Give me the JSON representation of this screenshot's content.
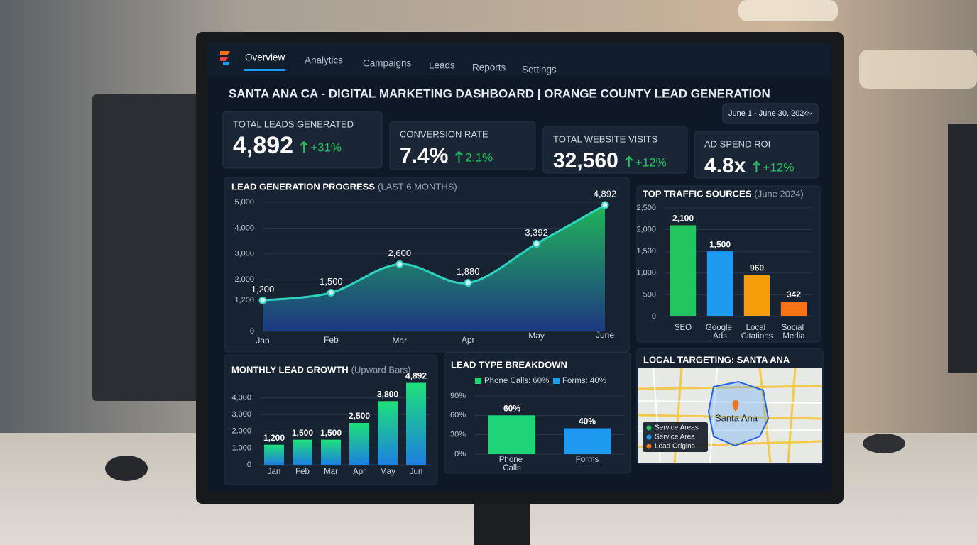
{
  "nav": [
    "Overview",
    "Analytics",
    "Campaigns",
    "Leads",
    "Reports",
    "Settings"
  ],
  "title": "SANTA ANA CA - DIGITAL MARKETING DASHBOARD | ORANGE COUNTY LEAD GENERATION",
  "date_range": "June 1 - June 30, 2024",
  "kpis": [
    {
      "label": "TOTAL LEADS GENERATED",
      "value": "4,892",
      "change": "+31%"
    },
    {
      "label": "CONVERSION RATE",
      "value": "7.4%",
      "change": "2.1%"
    },
    {
      "label": "TOTAL WEBSITE VISITS",
      "value": "32,560",
      "change": "+12%"
    },
    {
      "label": "AD SPEND ROI",
      "value": "4.8x",
      "change": "+12%"
    }
  ],
  "chart_data": [
    {
      "type": "line",
      "title": "LEAD GENERATION PROGRESS",
      "subtitle": "(LAST 6 MONTHS)",
      "categories": [
        "Jan",
        "Feb",
        "Mar",
        "Apr",
        "May",
        "June"
      ],
      "values": [
        1200,
        1500,
        2600,
        1880,
        3392,
        4892
      ],
      "value_labels": [
        "1,200",
        "1,500",
        "2,600",
        "1,880",
        "3,392",
        "4,892"
      ],
      "color": "#2dd4bf",
      "colors": [
        "#22c55e",
        "#1e3a8a"
      ],
      "ylim": [
        0,
        5000
      ],
      "yticks": [
        0,
        {
          "value": 1200,
          "label": "1,200"
        },
        {
          "value": 2000,
          "label": "2,000"
        },
        {
          "value": 3000,
          "label": "3,000"
        },
        {
          "value": 4000,
          "label": "4,000"
        },
        {
          "value": 5000,
          "label": "5,000"
        }
      ],
      "grid": true
    },
    {
      "type": "bar",
      "title": "TOP TRAFFIC SOURCES",
      "subtitle": "(June 2024)",
      "categories": [
        "SEO",
        "Google Ads",
        "Local Citations",
        "Social Media"
      ],
      "values": [
        2100,
        1500,
        960,
        342
      ],
      "value_labels": [
        "2,100",
        "1,500",
        "960",
        "342"
      ],
      "colors": [
        "#22c55e",
        "#1e9bf0",
        "#f59e0b",
        "#f97316"
      ],
      "ylim": [
        0,
        2500
      ],
      "yticks": [
        0,
        500,
        {
          "value": 1000,
          "label": "1,000"
        },
        {
          "value": 1500,
          "label": "1,500"
        },
        {
          "value": 2000,
          "label": "2,000"
        },
        {
          "value": 2500,
          "label": "2,500"
        }
      ],
      "grid": true
    },
    {
      "type": "bar",
      "title": "MONTHLY LEAD GROWTH",
      "subtitle": "(Upward Bars)",
      "categories": [
        "Jan",
        "Feb",
        "Mar",
        "Apr",
        "May",
        "Jun"
      ],
      "values": [
        1200,
        1500,
        1500,
        2500,
        3800,
        4892
      ],
      "value_labels": [
        "1,200",
        "1,500",
        "1,500",
        "2,500",
        "3,800",
        "4,892"
      ],
      "gradient": [
        "#1ee07a",
        "#1d7fe0"
      ],
      "ylim": [
        0,
        5000
      ],
      "yticks": [
        0,
        {
          "value": 1000,
          "label": "1,000"
        },
        {
          "value": 2000,
          "label": "2,000"
        },
        {
          "value": 3000,
          "label": "3,000"
        },
        {
          "value": 4000,
          "label": "4,000"
        }
      ],
      "grid": true
    },
    {
      "type": "bar",
      "title": "LEAD TYPE BREAKDOWN",
      "categories": [
        "Phone Calls",
        "Forms"
      ],
      "values": [
        60,
        40
      ],
      "value_labels": [
        "60%",
        "40%"
      ],
      "colors": [
        "#1ed477",
        "#1e9bf0"
      ],
      "legend": [
        "Phone Calls: 60%",
        "Forms: 40%"
      ],
      "ylim": [
        0,
        90
      ],
      "yticks": [
        {
          "value": 0,
          "label": "0%"
        },
        {
          "value": 30,
          "label": "30%"
        },
        {
          "value": 60,
          "label": "60%"
        },
        {
          "value": 90,
          "label": "90%"
        }
      ],
      "grid": true
    }
  ],
  "map": {
    "title": "LOCAL TARGETING: SANTA ANA",
    "label": "Santa Ana",
    "legend": [
      {
        "name": "Service Areas",
        "color": "#22c55e"
      },
      {
        "name": "Service Area",
        "color": "#1e9bf0"
      },
      {
        "name": "Lead Origins",
        "color": "#f97316"
      }
    ]
  }
}
